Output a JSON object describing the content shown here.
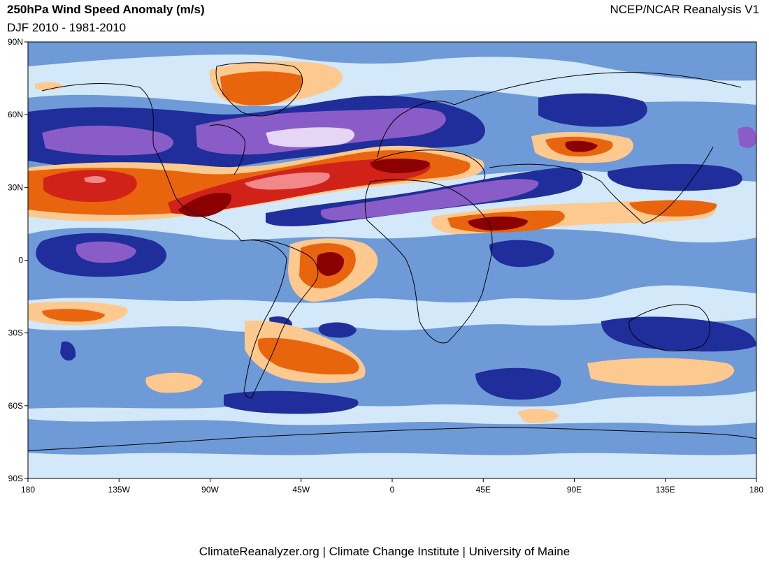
{
  "header": {
    "title": "250hPa Wind Speed Anomaly (m/s)",
    "subtitle": "DJF 2010 - 1981-2010",
    "source": "NCEP/NCAR Reanalysis V1"
  },
  "footer": {
    "credit": "ClimateReanalyzer.org | Climate Change Institute | University of Maine"
  },
  "map": {
    "projection": "equirectangular",
    "lon_range": [
      -180,
      180
    ],
    "lat_range": [
      -90,
      90
    ],
    "x_ticks": [
      "180",
      "135W",
      "90W",
      "45W",
      "0",
      "45E",
      "90E",
      "135E",
      "180"
    ],
    "y_ticks": [
      "90N",
      "60N",
      "30N",
      "0",
      "30S",
      "60S",
      "90S"
    ],
    "background_color": "#d3e8f8",
    "palette": {
      "neg_extreme": "#5b2c8f",
      "neg_very_strong": "#8a5cc8",
      "neg_strong": "#1f2e9a",
      "neg_moderate": "#2c3fa8",
      "neg_weak": "#6f9ad8",
      "neutral": "#d3e8f8",
      "pos_weak": "#fdc98f",
      "pos_moderate": "#e8650d",
      "pos_strong": "#d12219",
      "pos_extreme": "#8b0000"
    }
  }
}
